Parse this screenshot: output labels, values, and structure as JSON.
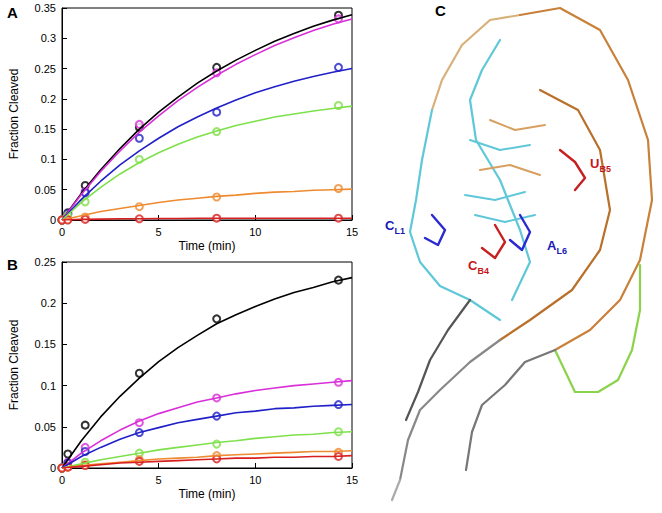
{
  "chart_data": [
    {
      "type": "line",
      "title": "A",
      "x_label": "Time (min)",
      "y_label": "Fraction Cleaved",
      "xlim": [
        0,
        15
      ],
      "xticks": [
        0,
        5,
        10,
        15
      ],
      "ylim": [
        0,
        0.35
      ],
      "yticks": [
        0,
        0.05,
        0.1,
        0.15,
        0.2,
        0.25,
        0.3,
        0.35
      ],
      "grid": false,
      "marker": "o",
      "line_style": "solid",
      "fit_x": [
        0,
        1,
        2,
        3,
        4,
        5,
        6,
        7,
        8,
        9,
        10,
        11,
        12,
        13,
        14,
        15
      ],
      "series": [
        {
          "color": "#000000",
          "x": [
            0,
            0.3,
            1.2,
            4,
            8,
            14.3
          ],
          "values": [
            0,
            0.012,
            0.057,
            0.153,
            0.252,
            0.338
          ],
          "fit": [
            0,
            0.044,
            0.083,
            0.118,
            0.15,
            0.178,
            0.203,
            0.226,
            0.246,
            0.264,
            0.28,
            0.295,
            0.308,
            0.32,
            0.33,
            0.339
          ]
        },
        {
          "color": "#d92ed9",
          "x": [
            0,
            0.3,
            1.2,
            4,
            8,
            14.3
          ],
          "values": [
            0,
            0.01,
            0.047,
            0.158,
            0.243,
            0.332
          ],
          "fit": [
            0,
            0.042,
            0.08,
            0.114,
            0.145,
            0.172,
            0.197,
            0.219,
            0.239,
            0.257,
            0.273,
            0.288,
            0.301,
            0.313,
            0.323,
            0.332
          ]
        },
        {
          "color": "#2020c8",
          "x": [
            0,
            0.3,
            1.2,
            4,
            8,
            14.3
          ],
          "values": [
            0,
            0.01,
            0.045,
            0.135,
            0.178,
            0.252
          ],
          "fit": [
            0,
            0.034,
            0.064,
            0.091,
            0.114,
            0.135,
            0.154,
            0.17,
            0.185,
            0.198,
            0.21,
            0.22,
            0.229,
            0.237,
            0.244,
            0.25
          ]
        },
        {
          "color": "#7ee04a",
          "x": [
            0,
            0.3,
            1.2,
            4,
            8,
            14.3
          ],
          "values": [
            0,
            0.008,
            0.03,
            0.1,
            0.146,
            0.189
          ],
          "fit": [
            0,
            0.029,
            0.054,
            0.076,
            0.095,
            0.111,
            0.125,
            0.137,
            0.147,
            0.156,
            0.163,
            0.17,
            0.175,
            0.18,
            0.184,
            0.188
          ]
        },
        {
          "color": "#ee8a30",
          "x": [
            0,
            0.3,
            1.2,
            4,
            8,
            14.3
          ],
          "values": [
            0,
            0.001,
            0.005,
            0.022,
            0.038,
            0.052
          ],
          "fit": [
            0,
            0.007,
            0.014,
            0.019,
            0.024,
            0.029,
            0.033,
            0.036,
            0.039,
            0.041,
            0.044,
            0.046,
            0.047,
            0.049,
            0.05,
            0.051
          ]
        },
        {
          "color": "#d82020",
          "x": [
            0,
            0.3,
            1.2,
            4,
            8,
            14.3
          ],
          "values": [
            0,
            0,
            0.001,
            0.002,
            0.003,
            0.003
          ],
          "fit": [
            0,
            0.001,
            0.0015,
            0.002,
            0.002,
            0.0025,
            0.0025,
            0.003,
            0.003,
            0.003,
            0.003,
            0.003,
            0.003,
            0.003,
            0.003,
            0.003
          ]
        }
      ]
    },
    {
      "type": "line",
      "title": "B",
      "x_label": "Time (min)",
      "y_label": "Fraction Cleaved",
      "xlim": [
        0,
        15
      ],
      "xticks": [
        0,
        5,
        10,
        15
      ],
      "ylim": [
        0,
        0.25
      ],
      "yticks": [
        0,
        0.05,
        0.1,
        0.15,
        0.2,
        0.25
      ],
      "grid": false,
      "marker": "o",
      "line_style": "solid",
      "fit_x": [
        0,
        1,
        2,
        3,
        4,
        5,
        6,
        7,
        8,
        9,
        10,
        11,
        12,
        13,
        14,
        15
      ],
      "series": [
        {
          "color": "#000000",
          "x": [
            0,
            0.3,
            1.2,
            4,
            8,
            14.3
          ],
          "values": [
            0,
            0.017,
            0.052,
            0.115,
            0.181,
            0.228
          ],
          "fit": [
            0,
            0.033,
            0.062,
            0.087,
            0.109,
            0.129,
            0.146,
            0.161,
            0.175,
            0.186,
            0.196,
            0.205,
            0.213,
            0.219,
            0.226,
            0.231
          ]
        },
        {
          "color": "#d92ed9",
          "x": [
            0,
            0.3,
            1.2,
            4,
            8,
            14.3
          ],
          "values": [
            0,
            0.007,
            0.025,
            0.055,
            0.085,
            0.104
          ],
          "fit": [
            0,
            0.018,
            0.033,
            0.046,
            0.057,
            0.066,
            0.073,
            0.08,
            0.085,
            0.09,
            0.094,
            0.097,
            0.1,
            0.102,
            0.104,
            0.106
          ]
        },
        {
          "color": "#2020c8",
          "x": [
            0,
            0.3,
            1.2,
            4,
            8,
            14.3
          ],
          "values": [
            0,
            0.006,
            0.02,
            0.043,
            0.063,
            0.077
          ],
          "fit": [
            0,
            0.014,
            0.025,
            0.035,
            0.043,
            0.049,
            0.055,
            0.059,
            0.063,
            0.067,
            0.069,
            0.072,
            0.073,
            0.075,
            0.076,
            0.077
          ]
        },
        {
          "color": "#7ee04a",
          "x": [
            0,
            0.3,
            1.2,
            4,
            8,
            14.3
          ],
          "values": [
            0,
            0.002,
            0.007,
            0.018,
            0.029,
            0.044
          ],
          "fit": [
            0,
            0.005,
            0.01,
            0.014,
            0.018,
            0.022,
            0.025,
            0.028,
            0.031,
            0.033,
            0.036,
            0.038,
            0.04,
            0.041,
            0.043,
            0.044
          ]
        },
        {
          "color": "#ee8a30",
          "x": [
            0,
            0.3,
            1.2,
            4,
            8,
            14.3
          ],
          "values": [
            0,
            0.001,
            0.004,
            0.01,
            0.015,
            0.019
          ],
          "fit": [
            0,
            0.003,
            0.005,
            0.007,
            0.009,
            0.011,
            0.012,
            0.013,
            0.015,
            0.016,
            0.017,
            0.018,
            0.019,
            0.02,
            0.02,
            0.021
          ]
        },
        {
          "color": "#d82020",
          "x": [
            0,
            0.3,
            1.2,
            4,
            8,
            14.3
          ],
          "values": [
            0,
            0.001,
            0.003,
            0.008,
            0.011,
            0.014
          ],
          "fit": [
            0,
            0.002,
            0.004,
            0.006,
            0.007,
            0.008,
            0.009,
            0.01,
            0.011,
            0.012,
            0.012,
            0.013,
            0.013,
            0.014,
            0.014,
            0.015
          ]
        }
      ]
    }
  ],
  "panel_c": {
    "title": "C",
    "labels": [
      {
        "text": "C",
        "subscript": "L1",
        "color": "#1a1ab4"
      },
      {
        "text": "A",
        "subscript": "L6",
        "color": "#1a1ab4"
      },
      {
        "text": "C",
        "subscript": "B4",
        "color": "#c41818"
      },
      {
        "text": "U",
        "subscript": "B5",
        "color": "#c41818"
      }
    ]
  }
}
